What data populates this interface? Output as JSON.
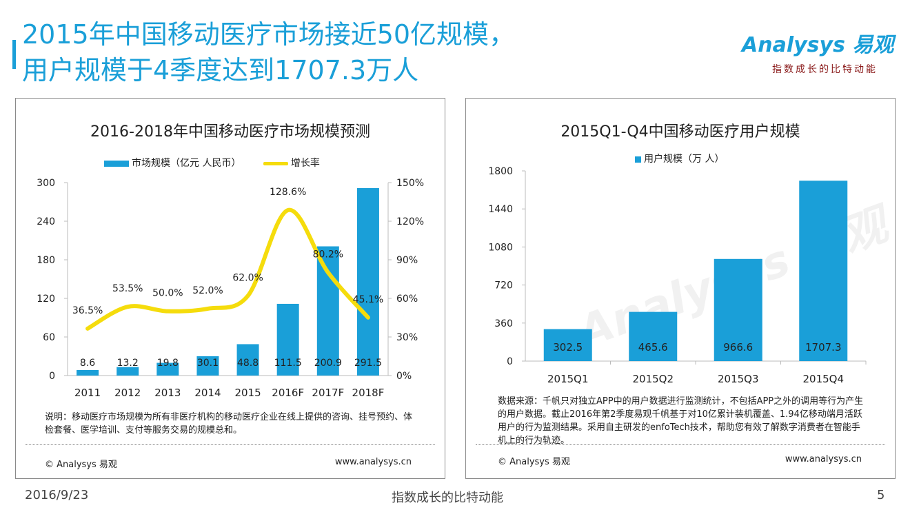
{
  "header": {
    "title_line1": "2015年中国移动医疗市场接近50亿规模，",
    "title_line2": "用户规模于4季度达到1707.3万人"
  },
  "logo": {
    "wordmark": "Analysys 易观",
    "tagline": "指数成长的比特动能"
  },
  "left_panel": {
    "note": "说明：移动医疗市场规模为所有非医疗机构的移动医疗企业在线上提供的咨询、挂号预约、体检套餐、医学培训、支付等服务交易的规模总和。",
    "copyright": "© Analysys 易观",
    "url": "www.analysys.cn"
  },
  "right_panel": {
    "source": "数据来源：千帆只对独立APP中的用户数据进行监测统计，不包括APP之外的调用等行为产生的用户数据。截止2016年第2季度易观千帆基于对10亿累计装机覆盖、1.94亿移动端月活跃用户的行为监测结果。采用自主研发的enfoTech技术，帮助您有效了解数字消费者在智能手机上的行为轨迹。",
    "copyright": "© Analysys 易观",
    "url": "www.analysys.cn"
  },
  "footer": {
    "date": "2016/9/23",
    "center": "指数成长的比特动能",
    "page": "5"
  },
  "colors": {
    "accent": "#1a9fd8",
    "line": "#f5dc0c",
    "logo_tag": "#8a1a1a"
  },
  "chart_data": [
    {
      "type": "bar",
      "title": "2016-2018年中国移动医疗市场规模预测",
      "categories": [
        "2011",
        "2012",
        "2013",
        "2014",
        "2015",
        "2016F",
        "2017F",
        "2018F"
      ],
      "series": [
        {
          "name": "市场规模（亿元 人民币）",
          "type": "bar",
          "axis": "left",
          "values": [
            8.6,
            13.2,
            19.8,
            30.1,
            48.8,
            111.5,
            200.9,
            291.5
          ],
          "labels": [
            "8.6",
            "13.2",
            "19.8",
            "30.1",
            "48.8",
            "111.5",
            "200.9",
            "291.5"
          ]
        },
        {
          "name": "增长率",
          "type": "line",
          "axis": "right",
          "values": [
            36.5,
            53.5,
            50.0,
            52.0,
            62.0,
            128.6,
            80.2,
            45.1
          ],
          "labels": [
            "36.5%",
            "53.5%",
            "50.0%",
            "52.0%",
            "62.0%",
            "128.6%",
            "80.2%",
            "45.1%"
          ]
        }
      ],
      "ylim": [
        0,
        300
      ],
      "yticks": [
        "0",
        "60",
        "120",
        "180",
        "240",
        "300"
      ],
      "y2lim": [
        0,
        150
      ],
      "y2ticks": [
        "0%",
        "30%",
        "60%",
        "90%",
        "120%",
        "150%"
      ],
      "legend": "top-center"
    },
    {
      "type": "bar",
      "title": "2015Q1-Q4中国移动医疗用户规模",
      "categories": [
        "2015Q1",
        "2015Q2",
        "2015Q3",
        "2015Q4"
      ],
      "series": [
        {
          "name": "用户规模（万 人）",
          "values": [
            302.5,
            465.6,
            966.6,
            1707.3
          ],
          "labels": [
            "302.5",
            "465.6",
            "966.6",
            "1707.3"
          ]
        }
      ],
      "ylim": [
        0,
        1800
      ],
      "yticks": [
        "0",
        "360",
        "720",
        "1080",
        "1440",
        "1800"
      ],
      "legend": "top-center"
    }
  ]
}
